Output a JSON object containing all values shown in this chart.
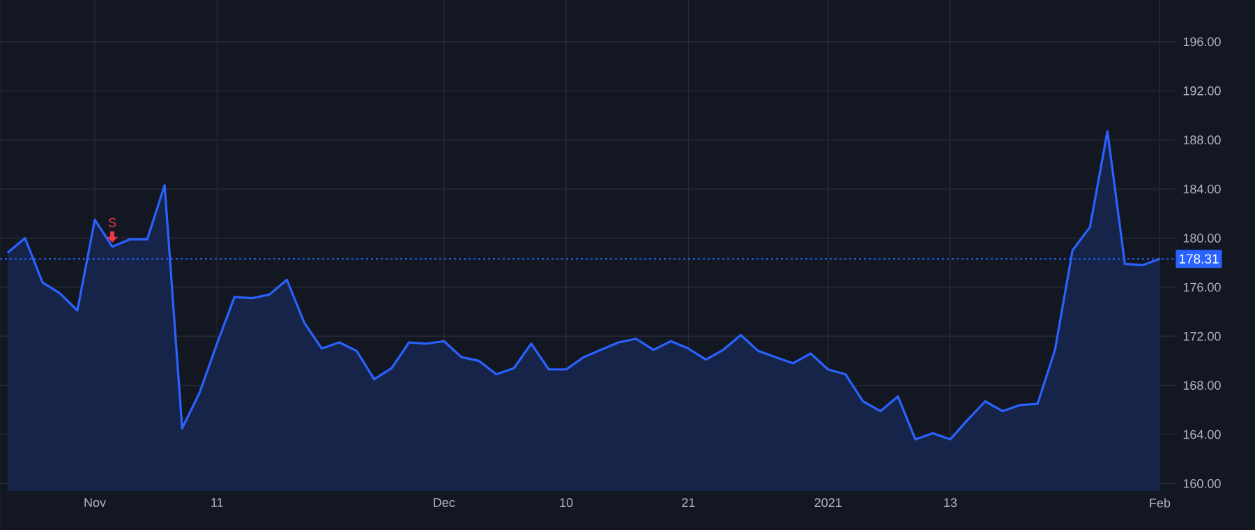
{
  "chart_data": {
    "type": "area",
    "categories": [
      null,
      null,
      null,
      null,
      null,
      "Nov",
      null,
      null,
      null,
      null,
      null,
      null,
      "11",
      null,
      null,
      null,
      null,
      null,
      null,
      null,
      null,
      null,
      null,
      null,
      null,
      "Dec",
      null,
      null,
      null,
      null,
      null,
      null,
      "10",
      null,
      null,
      null,
      null,
      null,
      null,
      "21",
      null,
      null,
      null,
      null,
      null,
      null,
      null,
      "2021",
      null,
      null,
      null,
      null,
      null,
      null,
      "13",
      null,
      null,
      null,
      null,
      null,
      null,
      null,
      null,
      null,
      null,
      null,
      "Feb"
    ],
    "series": [
      {
        "color": "#2962ff",
        "values": [
          178.8,
          180.0,
          176.4,
          175.5,
          174.1,
          181.5,
          179.3,
          179.9,
          179.9,
          184.3,
          164.5,
          167.4,
          171.4,
          175.2,
          175.1,
          175.4,
          176.6,
          173.1,
          171.0,
          171.5,
          170.8,
          168.5,
          169.4,
          171.5,
          171.4,
          171.6,
          170.3,
          170.0,
          168.9,
          169.4,
          171.4,
          169.3,
          169.3,
          170.3,
          170.9,
          171.5,
          171.8,
          170.9,
          171.6,
          171.0,
          170.1,
          170.9,
          172.1,
          170.8,
          170.3,
          169.8,
          170.6,
          169.3,
          168.9,
          166.7,
          165.9,
          167.1,
          163.6,
          164.1,
          163.6,
          165.2,
          166.7,
          165.9,
          166.4,
          166.5,
          170.9,
          179.0,
          180.9,
          188.7,
          177.9,
          177.8,
          178.31
        ]
      }
    ],
    "ylim": [
      159.4,
      199.4
    ],
    "yticks": [
      {
        "value": 160,
        "label": "160.00"
      },
      {
        "value": 164,
        "label": "164.00"
      },
      {
        "value": 168,
        "label": "168.00"
      },
      {
        "value": 172,
        "label": "172.00"
      },
      {
        "value": 176,
        "label": "176.00"
      },
      {
        "value": 180,
        "label": "180.00"
      },
      {
        "value": 184,
        "label": "184.00"
      },
      {
        "value": 188,
        "label": "188.00"
      },
      {
        "value": 192,
        "label": "192.00"
      },
      {
        "value": 196,
        "label": "196.00"
      }
    ],
    "ref_lines": [
      {
        "axis": "y",
        "value": 178.31,
        "label": "178.31",
        "color": "#2962ff",
        "line_style": "dotted"
      }
    ],
    "annotations": [
      "S"
    ],
    "grid": true,
    "marker": "none"
  }
}
